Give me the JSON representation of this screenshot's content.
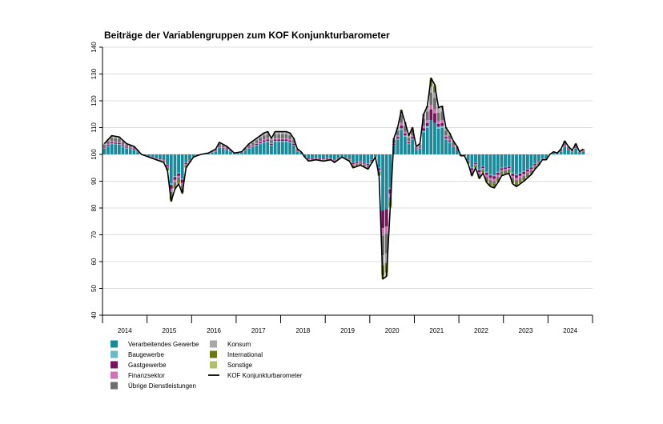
{
  "chart_data": {
    "type": "bar",
    "title": "Beiträge der Variablengruppen zum KOF Konjunkturbarometer",
    "xlabel": "",
    "ylabel": "",
    "ylim": [
      40,
      140
    ],
    "yticks": [
      "40",
      "50",
      "60",
      "70",
      "80",
      "90",
      "100",
      "110",
      "120",
      "130",
      "140"
    ],
    "xticks": [
      "2014",
      "2015",
      "2016",
      "2017",
      "2018",
      "2019",
      "2020",
      "2021",
      "2022",
      "2023",
      "2024"
    ],
    "x_start": "2014-01",
    "x_end": "2024-10",
    "baseline": 100,
    "grid": "horizontal",
    "legend_position": "bottom-left",
    "colors": {
      "verarbeitendes": "#1a8a9a",
      "bau": "#6ab8c8",
      "gast": "#7a1060",
      "finanz": "#d070b8",
      "uebrige": "#6e6e6e",
      "konsum": "#a8a8a8",
      "international": "#6b7a10",
      "sonstige": "#b0c070",
      "kof": "#000000"
    },
    "legend": [
      {
        "label": "Verarbeitendes Gewerbe",
        "key": "verarbeitendes",
        "kind": "box"
      },
      {
        "label": "Baugewerbe",
        "key": "bau",
        "kind": "box"
      },
      {
        "label": "Gastgewerbe",
        "key": "gast",
        "kind": "box"
      },
      {
        "label": "Finanzsektor",
        "key": "finanz",
        "kind": "box"
      },
      {
        "label": "Übrige Dienstleistungen",
        "key": "uebrige",
        "kind": "box"
      },
      {
        "label": "Konsum",
        "key": "konsum",
        "kind": "box"
      },
      {
        "label": "International",
        "key": "international",
        "kind": "box"
      },
      {
        "label": "Sonstige",
        "key": "sonstige",
        "kind": "box"
      },
      {
        "label": "KOF Konjunkturbarometer",
        "key": "kof",
        "kind": "line"
      }
    ],
    "kof_anchors": [
      [
        "2014-01",
        104
      ],
      [
        "2014-03",
        107
      ],
      [
        "2014-05",
        106.5
      ],
      [
        "2014-07",
        104
      ],
      [
        "2014-09",
        103
      ],
      [
        "2014-11",
        100
      ],
      [
        "2015-01",
        99
      ],
      [
        "2015-03",
        98
      ],
      [
        "2015-05",
        97
      ],
      [
        "2015-06",
        94
      ],
      [
        "2015-07",
        82.5
      ],
      [
        "2015-08",
        87
      ],
      [
        "2015-09",
        89
      ],
      [
        "2015-10",
        85.5
      ],
      [
        "2015-11",
        95
      ],
      [
        "2016-01",
        99
      ],
      [
        "2016-03",
        100
      ],
      [
        "2016-05",
        100.5
      ],
      [
        "2016-07",
        102
      ],
      [
        "2016-08",
        104.5
      ],
      [
        "2016-10",
        103
      ],
      [
        "2016-12",
        100.5
      ],
      [
        "2017-02",
        101
      ],
      [
        "2017-04",
        104
      ],
      [
        "2017-06",
        106
      ],
      [
        "2017-08",
        108
      ],
      [
        "2017-09",
        108.5
      ],
      [
        "2017-10",
        106
      ],
      [
        "2017-11",
        108.5
      ],
      [
        "2017-12",
        108.5
      ],
      [
        "2018-02",
        108.5
      ],
      [
        "2018-03",
        108
      ],
      [
        "2018-04",
        106
      ],
      [
        "2018-05",
        102
      ],
      [
        "2018-06",
        101
      ],
      [
        "2018-07",
        99
      ],
      [
        "2018-08",
        97.5
      ],
      [
        "2018-10",
        98
      ],
      [
        "2018-12",
        97.5
      ],
      [
        "2019-02",
        98
      ],
      [
        "2019-03",
        97
      ],
      [
        "2019-05",
        99
      ],
      [
        "2019-07",
        97.5
      ],
      [
        "2019-08",
        95
      ],
      [
        "2019-10",
        96
      ],
      [
        "2019-12",
        94.5
      ],
      [
        "2020-02",
        99
      ],
      [
        "2020-03",
        92
      ],
      [
        "2020-04",
        53.5
      ],
      [
        "2020-05",
        54.5
      ],
      [
        "2020-06",
        80
      ],
      [
        "2020-07",
        106
      ],
      [
        "2020-08",
        110
      ],
      [
        "2020-09",
        116.5
      ],
      [
        "2020-10",
        112
      ],
      [
        "2020-11",
        107
      ],
      [
        "2020-12",
        110
      ],
      [
        "2021-01",
        103
      ],
      [
        "2021-02",
        104
      ],
      [
        "2021-03",
        115
      ],
      [
        "2021-04",
        118
      ],
      [
        "2021-05",
        128.5
      ],
      [
        "2021-06",
        126
      ],
      [
        "2021-07",
        117.5
      ],
      [
        "2021-08",
        118
      ],
      [
        "2021-09",
        110
      ],
      [
        "2021-10",
        108
      ],
      [
        "2021-11",
        105
      ],
      [
        "2021-12",
        103
      ],
      [
        "2022-01",
        99.5
      ],
      [
        "2022-02",
        99.5
      ],
      [
        "2022-03",
        96.5
      ],
      [
        "2022-04",
        92
      ],
      [
        "2022-05",
        95
      ],
      [
        "2022-06",
        91
      ],
      [
        "2022-07",
        93
      ],
      [
        "2022-08",
        89.5
      ],
      [
        "2022-09",
        88
      ],
      [
        "2022-10",
        87.5
      ],
      [
        "2022-11",
        89.5
      ],
      [
        "2022-12",
        92
      ],
      [
        "2023-02",
        93
      ],
      [
        "2023-03",
        89
      ],
      [
        "2023-04",
        88
      ],
      [
        "2023-05",
        89
      ],
      [
        "2023-06",
        90
      ],
      [
        "2023-08",
        92.5
      ],
      [
        "2023-09",
        94.5
      ],
      [
        "2023-10",
        96
      ],
      [
        "2023-11",
        98
      ],
      [
        "2023-12",
        98
      ],
      [
        "2024-01",
        100
      ],
      [
        "2024-02",
        101
      ],
      [
        "2024-03",
        100.5
      ],
      [
        "2024-04",
        102
      ],
      [
        "2024-05",
        105
      ],
      [
        "2024-06",
        103
      ],
      [
        "2024-07",
        101.5
      ],
      [
        "2024-08",
        104
      ],
      [
        "2024-09",
        101
      ],
      [
        "2024-10",
        102
      ]
    ]
  }
}
